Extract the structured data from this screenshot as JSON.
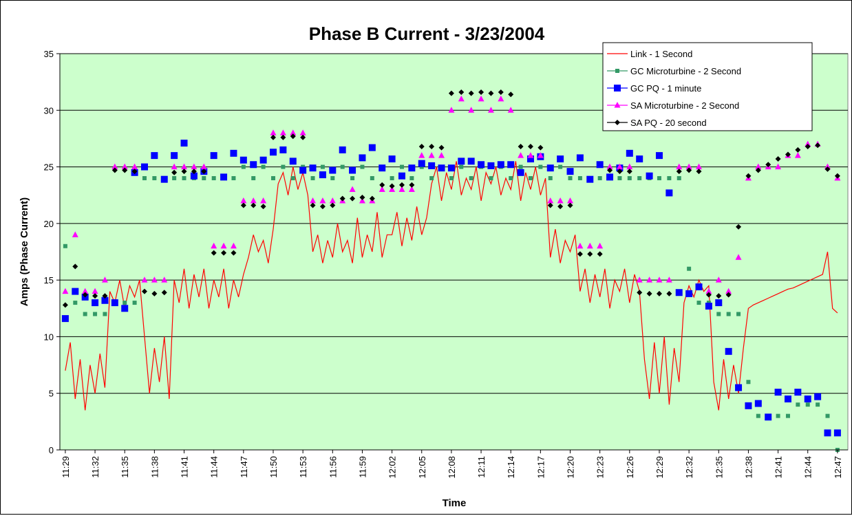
{
  "chart_data": {
    "type": "line",
    "title": "Phase B Current - 3/23/2004",
    "x_label": "Time",
    "y_label": "Amps (Phase Current)",
    "xlim": [
      688.45,
      768.05
    ],
    "ylim": [
      0,
      35
    ],
    "yticks": [
      0,
      5,
      10,
      15,
      20,
      25,
      30,
      35
    ],
    "grid": true,
    "legend": "upper right",
    "xticks": [
      {
        "value": 689,
        "label": "11:29"
      },
      {
        "value": 692,
        "label": "11:32"
      },
      {
        "value": 695,
        "label": "11:35"
      },
      {
        "value": 698,
        "label": "11:38"
      },
      {
        "value": 701,
        "label": "11:41"
      },
      {
        "value": 704,
        "label": "11:44"
      },
      {
        "value": 707,
        "label": "11:47"
      },
      {
        "value": 710,
        "label": "11:50"
      },
      {
        "value": 713,
        "label": "11:53"
      },
      {
        "value": 716,
        "label": "11:56"
      },
      {
        "value": 719,
        "label": "11:59"
      },
      {
        "value": 722,
        "label": "12:02"
      },
      {
        "value": 725,
        "label": "12:05"
      },
      {
        "value": 728,
        "label": "12:08"
      },
      {
        "value": 731,
        "label": "12:11"
      },
      {
        "value": 734,
        "label": "12:14"
      },
      {
        "value": 737,
        "label": "12:17"
      },
      {
        "value": 740,
        "label": "12:20"
      },
      {
        "value": 743,
        "label": "12:23"
      },
      {
        "value": 746,
        "label": "12:26"
      },
      {
        "value": 749,
        "label": "12:29"
      },
      {
        "value": 752,
        "label": "12:32"
      },
      {
        "value": 755,
        "label": "12:35"
      },
      {
        "value": 758,
        "label": "12:38"
      },
      {
        "value": 761,
        "label": "12:41"
      },
      {
        "value": 764,
        "label": "12:44"
      },
      {
        "value": 767,
        "label": "12:47"
      }
    ],
    "x": [
      689,
      690,
      691,
      692,
      693,
      694,
      695,
      696,
      697,
      698,
      699,
      700,
      701,
      702,
      703,
      704,
      705,
      706,
      707,
      708,
      709,
      710,
      711,
      712,
      713,
      714,
      715,
      716,
      717,
      718,
      719,
      720,
      721,
      722,
      723,
      724,
      725,
      726,
      727,
      728,
      729,
      730,
      731,
      732,
      733,
      734,
      735,
      736,
      737,
      738,
      739,
      740,
      741,
      742,
      743,
      744,
      745,
      746,
      747,
      748,
      749,
      750,
      751,
      752,
      753,
      754,
      755,
      756,
      757,
      758,
      759,
      760,
      761,
      762,
      763,
      764,
      765,
      766,
      767
    ],
    "series": [
      {
        "name": "Link - 1 Second",
        "color": "#ff0000",
        "line": true,
        "marker": null,
        "x": [
          689,
          689.5,
          690,
          690.5,
          691,
          691.5,
          692,
          692.5,
          693,
          693.5,
          694,
          694.5,
          695,
          695.5,
          696,
          696.5,
          697,
          697.5,
          698,
          698.5,
          699,
          699.5,
          700,
          700.5,
          701,
          701.5,
          702,
          702.5,
          703,
          703.5,
          704,
          704.5,
          705,
          705.5,
          706,
          706.5,
          707,
          707.5,
          708,
          708.5,
          709,
          709.5,
          710,
          710.5,
          711,
          711.5,
          712,
          712.5,
          713,
          713.5,
          714,
          714.5,
          715,
          715.5,
          716,
          716.5,
          717,
          717.5,
          718,
          718.5,
          719,
          719.5,
          720,
          720.5,
          721,
          721.5,
          722,
          722.5,
          723,
          723.5,
          724,
          724.5,
          725,
          725.5,
          726,
          726.5,
          727,
          727.5,
          728,
          728.5,
          729,
          729.5,
          730,
          730.5,
          731,
          731.5,
          732,
          732.5,
          733,
          733.5,
          734,
          734.5,
          735,
          735.5,
          736,
          736.5,
          737,
          737.5,
          738,
          738.5,
          739,
          739.5,
          740,
          740.5,
          741,
          741.5,
          742,
          742.5,
          743,
          743.5,
          744,
          744.5,
          745,
          745.5,
          746,
          746.5,
          747,
          747.5,
          748,
          748.5,
          749,
          749.5,
          750,
          750.5,
          751,
          751.5,
          752,
          752.5,
          753,
          753.5,
          754,
          754.5,
          755,
          755.5,
          756,
          756.5,
          757,
          757.5,
          758,
          758.5,
          759,
          759.5,
          760,
          760.5,
          761,
          761.5,
          762,
          762.5,
          763,
          763.5,
          764,
          764.5,
          765,
          765.5,
          766,
          766.5,
          767
        ],
        "values": [
          7,
          9.5,
          4.5,
          8,
          3.5,
          7.5,
          5,
          8.5,
          5.5,
          14,
          13,
          15,
          12.5,
          14.5,
          13.5,
          15,
          10,
          5,
          9,
          6,
          10,
          4.5,
          15,
          13,
          16,
          12.5,
          15.5,
          13.5,
          16,
          12.5,
          15,
          13.5,
          16,
          12.5,
          15,
          13.5,
          15.5,
          17,
          19,
          17.5,
          18.5,
          16.5,
          19.5,
          23.5,
          24.5,
          22.5,
          25,
          23,
          24.5,
          22.5,
          17.5,
          19,
          16.5,
          18.5,
          17,
          20,
          17.5,
          18.5,
          16.5,
          20.5,
          17,
          19,
          17.5,
          21,
          17,
          19,
          19,
          21,
          18,
          20.5,
          18.5,
          21.5,
          19,
          20.5,
          23.5,
          25,
          22,
          24.5,
          23,
          25.5,
          22.5,
          24,
          23,
          25,
          22,
          24.5,
          23.5,
          25,
          22.5,
          24,
          23,
          25.5,
          22,
          24.5,
          23,
          25,
          22.5,
          24,
          17,
          19.5,
          16.5,
          18.5,
          17.5,
          19,
          14,
          16,
          13,
          15.5,
          13.5,
          16,
          12.5,
          15,
          14,
          16,
          13,
          15.5,
          14,
          8,
          4.5,
          9.5,
          5,
          10,
          4,
          9,
          6,
          13,
          14.5,
          13.5,
          15,
          14,
          14.5,
          6,
          3.5,
          8,
          4.5,
          7.5,
          5,
          9,
          12.5,
          12.8,
          13,
          13.2,
          13.4,
          13.6,
          13.8,
          14,
          14.2,
          14.3,
          14.5,
          14.7,
          14.9,
          15.1,
          15.3,
          15.5,
          17.5,
          12.5,
          12.1
        ]
      },
      {
        "name": "GC Microturbine  - 2 Second",
        "color": "#339966",
        "line": false,
        "marker": "square",
        "values": [
          18,
          13,
          12,
          12,
          12,
          13,
          13,
          13,
          24,
          24,
          24,
          24,
          24,
          24,
          24,
          24,
          24,
          24,
          25,
          24,
          25,
          24,
          25,
          24,
          25,
          24,
          25,
          24,
          25,
          24,
          25,
          24,
          25,
          24,
          25,
          24,
          25,
          24,
          25,
          24,
          25,
          24,
          25,
          24,
          25,
          24,
          25,
          24,
          25,
          24,
          25,
          24,
          24,
          24,
          24,
          24,
          24,
          24,
          24,
          24,
          24,
          24,
          24,
          16,
          13,
          13,
          12,
          12,
          12,
          6,
          3,
          3,
          3,
          3,
          4,
          4,
          4,
          3,
          0
        ]
      },
      {
        "name": "GC PQ - 1 minute",
        "color": "#0000ff",
        "line": false,
        "marker": "bigsquare",
        "values": [
          11.6,
          14,
          13.5,
          13,
          13.2,
          13,
          12.5,
          24.5,
          25,
          26,
          23.9,
          26,
          27.1,
          24.2,
          24.6,
          26,
          24.1,
          26.2,
          25.6,
          25.2,
          25.6,
          26.3,
          26.5,
          25.5,
          24.7,
          24.9,
          24.3,
          24.7,
          26.5,
          24.7,
          25.8,
          26.7,
          24.9,
          25.7,
          24.2,
          24.9,
          25.3,
          25.1,
          24.9,
          24.9,
          25.5,
          25.5,
          25.2,
          25.1,
          25.2,
          25.2,
          24.5,
          25.7,
          25.9,
          24.9,
          25.7,
          24.6,
          25.8,
          23.9,
          25.2,
          24.1,
          24.9,
          26.2,
          25.7,
          24.2,
          26,
          22.7,
          13.9,
          13.8,
          14.4,
          12.7,
          13,
          8.7,
          5.5,
          3.9,
          4.1,
          2.9,
          5.1,
          4.5,
          5.1,
          4.5,
          4.7,
          1.5,
          1.5
        ]
      },
      {
        "name": "SA Microturbine - 2 Second",
        "color": "#ff00ff",
        "line": false,
        "marker": "triangle",
        "values": [
          14,
          19,
          14,
          14,
          15,
          25,
          25,
          25,
          15,
          15,
          15,
          25,
          25,
          25,
          25,
          18,
          18,
          18,
          22,
          22,
          22,
          28,
          28,
          28,
          28,
          22,
          22,
          22,
          22,
          23,
          22,
          22,
          23,
          23,
          23,
          23,
          26,
          26,
          26,
          30,
          31,
          30,
          31,
          30,
          31,
          30,
          26,
          26,
          26,
          22,
          22,
          22,
          18,
          18,
          18,
          25,
          25,
          25,
          15,
          15,
          15,
          15,
          25,
          25,
          25,
          14,
          15,
          14,
          17,
          24,
          25,
          25,
          25,
          26,
          26,
          27,
          27,
          25,
          24
        ]
      },
      {
        "name": "SA PQ - 20 second",
        "color": "#000000",
        "line": false,
        "marker": "diamond",
        "values": [
          12.8,
          16.2,
          13.7,
          13.6,
          13.6,
          24.7,
          24.7,
          24.6,
          14,
          13.8,
          13.9,
          24.5,
          24.6,
          24.6,
          24.6,
          17.4,
          17.4,
          17.4,
          21.6,
          21.6,
          21.5,
          27.6,
          27.6,
          27.7,
          27.6,
          21.6,
          21.5,
          21.6,
          22.2,
          22.2,
          22.3,
          22.2,
          23.4,
          23.3,
          23.4,
          23.4,
          26.8,
          26.8,
          26.7,
          31.5,
          31.6,
          31.5,
          31.6,
          31.5,
          31.6,
          31.4,
          26.8,
          26.8,
          26.7,
          21.6,
          21.5,
          21.6,
          17.3,
          17.3,
          17.3,
          24.7,
          24.6,
          24.6,
          13.9,
          13.8,
          13.8,
          13.8,
          24.6,
          24.7,
          24.6,
          13.7,
          13.6,
          13.7,
          19.7,
          24.2,
          24.7,
          25.2,
          25.7,
          26.1,
          26.5,
          26.8,
          26.9,
          24.8,
          24.2
        ]
      }
    ]
  }
}
